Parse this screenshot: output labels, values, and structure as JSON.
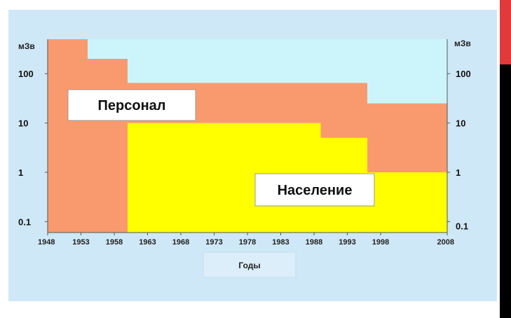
{
  "colors": {
    "panel_bg": "#cfe8f7",
    "plot_bg": "#ccf5fb",
    "personnel": "#f99a6e",
    "population": "#ffff00",
    "accent_red": "#e23a3a",
    "accent_black": "#000000"
  },
  "chart_data": {
    "type": "area",
    "xlabel": "Годы",
    "ylabel_left": "мЗв",
    "ylabel_right": "мЗв",
    "yscale": "log",
    "xlim": [
      1948,
      2008
    ],
    "ylim": [
      0.06,
      500
    ],
    "x_ticks": [
      "1948",
      "1953",
      "1958",
      "1963",
      "1968",
      "1973",
      "1978",
      "1983",
      "1988",
      "1993",
      "1998",
      "2008"
    ],
    "y_ticks": [
      "0.1",
      "1",
      "10",
      "100"
    ],
    "series": [
      {
        "name": "Персонал",
        "color": "#f99a6e",
        "steps": [
          {
            "from": 1948,
            "to": 1954,
            "value": 500
          },
          {
            "from": 1954,
            "to": 1960,
            "value": 200
          },
          {
            "from": 1960,
            "to": 1996,
            "value": 65
          },
          {
            "from": 1996,
            "to": 2008,
            "value": 25
          }
        ]
      },
      {
        "name": "Население",
        "color": "#ffff00",
        "steps": [
          {
            "from": 1948,
            "to": 1960,
            "value": 0.06
          },
          {
            "from": 1960,
            "to": 1989,
            "value": 10
          },
          {
            "from": 1989,
            "to": 1996,
            "value": 5
          },
          {
            "from": 1996,
            "to": 2008,
            "value": 1
          }
        ]
      }
    ]
  }
}
